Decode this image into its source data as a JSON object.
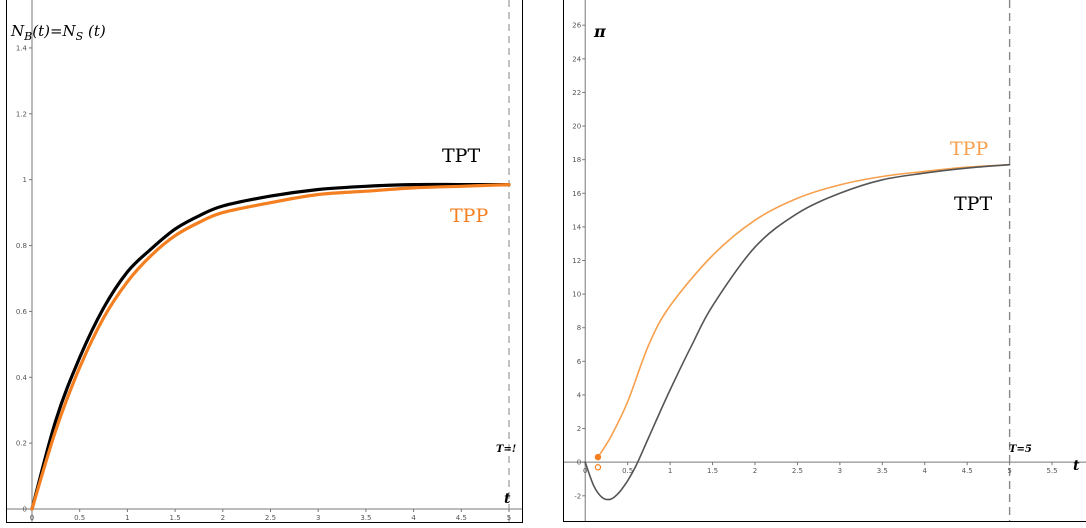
{
  "chart_data": [
    {
      "type": "line",
      "title": "",
      "ylabel_parts": {
        "n1": "N",
        "sub1": "B",
        "mid": "(t)=",
        "n2": "N",
        "sub2": "S",
        "end": " (t)"
      },
      "xlabel": "t",
      "xlim": [
        0,
        5
      ],
      "ylim": [
        0,
        1.5
      ],
      "x_ticks": [
        "0",
        "0.5",
        "1",
        "1.5",
        "2",
        "2.5",
        "3",
        "3.5",
        "4",
        "4.5",
        "5"
      ],
      "y_ticks": [
        "0",
        "0.2",
        "0.4",
        "0.6",
        "0.8",
        "1",
        "1.2",
        "1.4"
      ],
      "vline_label": "T=!",
      "vline_x": 5,
      "grid": false,
      "series": [
        {
          "name": "TPT",
          "color": "#000000",
          "x": [
            0,
            0.25,
            0.5,
            0.75,
            1,
            1.25,
            1.5,
            1.75,
            2,
            2.5,
            3,
            3.5,
            4,
            4.5,
            5
          ],
          "y": [
            0,
            0.27,
            0.46,
            0.61,
            0.72,
            0.79,
            0.85,
            0.89,
            0.92,
            0.95,
            0.97,
            0.98,
            0.985,
            0.985,
            0.985
          ]
        },
        {
          "name": "TPP",
          "color": "#F47F20",
          "x": [
            0,
            0.25,
            0.5,
            0.75,
            1,
            1.25,
            1.5,
            1.75,
            2,
            2.5,
            3,
            3.5,
            4,
            4.5,
            5
          ],
          "y": [
            0,
            0.24,
            0.43,
            0.58,
            0.69,
            0.77,
            0.83,
            0.87,
            0.9,
            0.93,
            0.955,
            0.965,
            0.975,
            0.98,
            0.985
          ]
        }
      ]
    },
    {
      "type": "line",
      "title": "",
      "ylabel": "π",
      "xlabel": "t",
      "xlim": [
        -0.25,
        5.9
      ],
      "ylim": [
        -3.5,
        27.5
      ],
      "x_ticks": [
        "0",
        "0.5",
        "1",
        "1.5",
        "2",
        "2.5",
        "3",
        "3.5",
        "4",
        "4.5",
        "5",
        "5.5"
      ],
      "y_ticks": [
        "-2",
        "0",
        "2",
        "4",
        "6",
        "8",
        "10",
        "12",
        "14",
        "16",
        "18",
        "20",
        "22",
        "24",
        "26"
      ],
      "vline_label": "T=5",
      "vline_x": 5,
      "grid": false,
      "series": [
        {
          "name": "TPP",
          "color": "#F7A04E",
          "x": [
            0.15,
            0.3,
            0.5,
            0.75,
            1,
            1.5,
            2,
            2.5,
            3,
            3.5,
            4,
            4.5,
            5
          ],
          "y": [
            0.3,
            1.5,
            3.6,
            7.0,
            9.3,
            12.3,
            14.4,
            15.7,
            16.5,
            17.0,
            17.3,
            17.55,
            17.7
          ]
        },
        {
          "name": "TPT",
          "color": "#555555",
          "x": [
            0,
            0.1,
            0.2,
            0.3,
            0.4,
            0.5,
            0.6,
            0.75,
            1,
            1.25,
            1.5,
            2,
            2.5,
            3,
            3.5,
            4,
            4.5,
            5
          ],
          "y": [
            0,
            -1.4,
            -2.1,
            -2.2,
            -1.8,
            -1.1,
            -0.2,
            1.5,
            4.3,
            6.9,
            9.3,
            12.8,
            14.8,
            16.0,
            16.8,
            17.2,
            17.5,
            17.7
          ]
        }
      ],
      "markers": [
        {
          "x": 0.15,
          "y": 0.3,
          "filled": true,
          "color": "#F47F20"
        },
        {
          "x": 0.15,
          "y": -0.3,
          "filled": false,
          "color": "#F47F20"
        }
      ]
    }
  ]
}
